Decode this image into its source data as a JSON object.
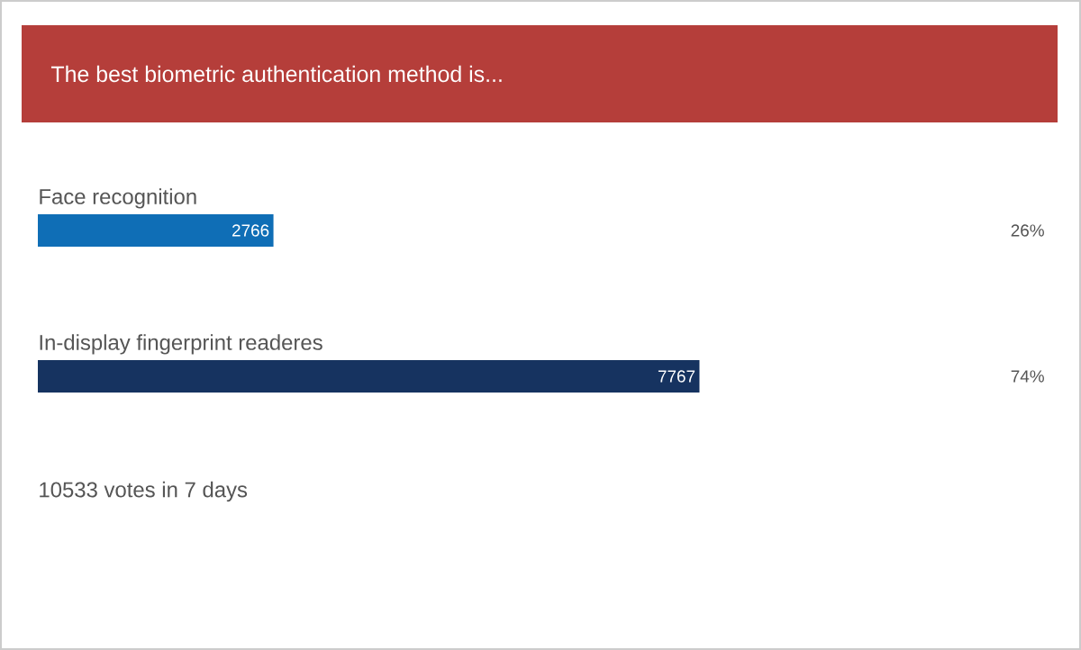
{
  "chart_data": {
    "type": "bar",
    "orientation": "horizontal",
    "title": "The best biometric authentication method is...",
    "categories": [
      "Face recognition",
      "In-display fingerprint readeres"
    ],
    "values": [
      2766,
      7767
    ],
    "colors": [
      "#0f6eb6",
      "#163360"
    ],
    "data_labels": true,
    "annotations": [
      "26%",
      "74%",
      "10533 votes in 7 days"
    ]
  }
}
